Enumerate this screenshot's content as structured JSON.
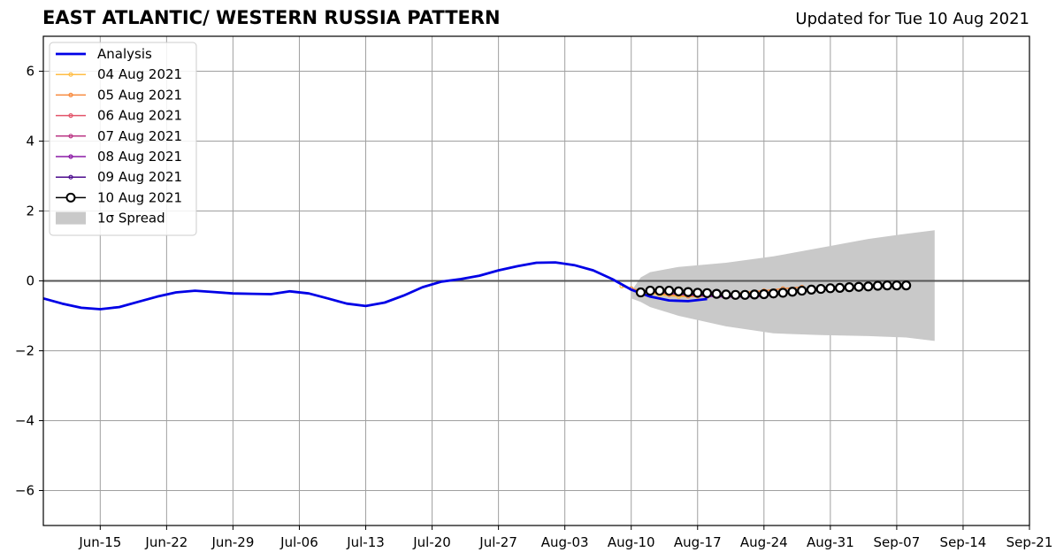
{
  "header": {
    "title": "EAST ATLANTIC/ WESTERN RUSSIA PATTERN",
    "updated": "Updated for Tue 10 Aug 2021"
  },
  "colors": {
    "analysis": "#0000e6",
    "spread": "#c9c9c9",
    "grid": "#a0a0a0",
    "zero_line": "#555555"
  },
  "chart_data": {
    "type": "line",
    "title": "EAST ATLANTIC/ WESTERN RUSSIA PATTERN",
    "xlabel": "",
    "ylabel": "",
    "x_type": "date",
    "xlim": [
      "2021-06-09",
      "2021-09-21"
    ],
    "ylim": [
      -7,
      7
    ],
    "grid": true,
    "legend_position": "top-left",
    "x_ticks": [
      {
        "date": "2021-06-15",
        "label": "Jun-15"
      },
      {
        "date": "2021-06-22",
        "label": "Jun-22"
      },
      {
        "date": "2021-06-29",
        "label": "Jun-29"
      },
      {
        "date": "2021-07-06",
        "label": "Jul-06"
      },
      {
        "date": "2021-07-13",
        "label": "Jul-13"
      },
      {
        "date": "2021-07-20",
        "label": "Jul-20"
      },
      {
        "date": "2021-07-27",
        "label": "Jul-27"
      },
      {
        "date": "2021-08-03",
        "label": "Aug-03"
      },
      {
        "date": "2021-08-10",
        "label": "Aug-10"
      },
      {
        "date": "2021-08-17",
        "label": "Aug-17"
      },
      {
        "date": "2021-08-24",
        "label": "Aug-24"
      },
      {
        "date": "2021-08-31",
        "label": "Aug-31"
      },
      {
        "date": "2021-09-07",
        "label": "Sep-07"
      },
      {
        "date": "2021-09-14",
        "label": "Sep-14"
      },
      {
        "date": "2021-09-21",
        "label": "Sep-21"
      }
    ],
    "y_ticks": [
      {
        "value": 6,
        "label": "6"
      },
      {
        "value": 4,
        "label": "4"
      },
      {
        "value": 2,
        "label": "2"
      },
      {
        "value": 0,
        "label": "0"
      },
      {
        "value": -2,
        "label": "−2"
      },
      {
        "value": -4,
        "label": "−4"
      },
      {
        "value": -6,
        "label": "−6"
      }
    ],
    "analysis": {
      "name": "Analysis",
      "color": "#0000e6",
      "points": [
        [
          "2021-06-09",
          -0.5
        ],
        [
          "2021-06-11",
          -0.65
        ],
        [
          "2021-06-13",
          -0.77
        ],
        [
          "2021-06-15",
          -0.81
        ],
        [
          "2021-06-17",
          -0.75
        ],
        [
          "2021-06-19",
          -0.6
        ],
        [
          "2021-06-21",
          -0.45
        ],
        [
          "2021-06-23",
          -0.33
        ],
        [
          "2021-06-25",
          -0.28
        ],
        [
          "2021-06-27",
          -0.32
        ],
        [
          "2021-06-29",
          -0.36
        ],
        [
          "2021-07-01",
          -0.37
        ],
        [
          "2021-07-03",
          -0.38
        ],
        [
          "2021-07-05",
          -0.3
        ],
        [
          "2021-07-07",
          -0.36
        ],
        [
          "2021-07-09",
          -0.5
        ],
        [
          "2021-07-11",
          -0.65
        ],
        [
          "2021-07-13",
          -0.72
        ],
        [
          "2021-07-15",
          -0.62
        ],
        [
          "2021-07-17",
          -0.42
        ],
        [
          "2021-07-19",
          -0.18
        ],
        [
          "2021-07-21",
          -0.02
        ],
        [
          "2021-07-23",
          0.05
        ],
        [
          "2021-07-25",
          0.15
        ],
        [
          "2021-07-27",
          0.3
        ],
        [
          "2021-07-29",
          0.42
        ],
        [
          "2021-07-31",
          0.52
        ],
        [
          "2021-08-02",
          0.53
        ],
        [
          "2021-08-04",
          0.45
        ],
        [
          "2021-08-06",
          0.3
        ],
        [
          "2021-08-08",
          0.05
        ],
        [
          "2021-08-10",
          -0.25
        ],
        [
          "2021-08-12",
          -0.45
        ],
        [
          "2021-08-14",
          -0.56
        ],
        [
          "2021-08-16",
          -0.58
        ],
        [
          "2021-08-18",
          -0.52
        ]
      ]
    },
    "spread": {
      "name": "1σ Spread",
      "color": "#c9c9c9",
      "upper": [
        [
          "2021-08-10",
          -0.3
        ],
        [
          "2021-08-11",
          0.1
        ],
        [
          "2021-08-12",
          0.25
        ],
        [
          "2021-08-15",
          0.4
        ],
        [
          "2021-08-20",
          0.52
        ],
        [
          "2021-08-25",
          0.7
        ],
        [
          "2021-08-30",
          0.95
        ],
        [
          "2021-09-04",
          1.2
        ],
        [
          "2021-09-08",
          1.35
        ],
        [
          "2021-09-11",
          1.45
        ]
      ],
      "lower": [
        [
          "2021-08-10",
          -0.5
        ],
        [
          "2021-08-11",
          -0.6
        ],
        [
          "2021-08-12",
          -0.75
        ],
        [
          "2021-08-15",
          -1.0
        ],
        [
          "2021-08-20",
          -1.3
        ],
        [
          "2021-08-25",
          -1.5
        ],
        [
          "2021-08-30",
          -1.55
        ],
        [
          "2021-09-04",
          -1.58
        ],
        [
          "2021-09-08",
          -1.62
        ],
        [
          "2021-09-11",
          -1.72
        ]
      ]
    },
    "forecasts": [
      {
        "name": "04 Aug 2021",
        "color": "#ffbd45",
        "points": [
          [
            "2021-08-09",
            -0.15
          ],
          [
            "2021-08-11",
            -0.32
          ],
          [
            "2021-08-13",
            -0.4
          ],
          [
            "2021-08-15",
            -0.45
          ],
          [
            "2021-08-17",
            -0.45
          ],
          [
            "2021-08-19",
            -0.42
          ],
          [
            "2021-08-21",
            -0.4
          ],
          [
            "2021-08-23",
            -0.35
          ]
        ]
      },
      {
        "name": "05 Aug 2021",
        "color": "#f88a3e",
        "points": [
          [
            "2021-08-10",
            -0.22
          ],
          [
            "2021-08-12",
            -0.33
          ],
          [
            "2021-08-14",
            -0.4
          ],
          [
            "2021-08-16",
            -0.44
          ],
          [
            "2021-08-18",
            -0.44
          ],
          [
            "2021-08-20",
            -0.4
          ],
          [
            "2021-08-22",
            -0.33
          ],
          [
            "2021-08-24",
            -0.28
          ],
          [
            "2021-08-26",
            -0.22
          ],
          [
            "2021-08-28",
            -0.18
          ]
        ]
      },
      {
        "name": "06 Aug 2021",
        "color": "#e3546a",
        "points": [
          [
            "2021-08-12",
            -0.3
          ],
          [
            "2021-08-14",
            -0.36
          ],
          [
            "2021-08-16",
            -0.4
          ],
          [
            "2021-08-18",
            -0.42
          ],
          [
            "2021-08-20",
            -0.42
          ],
          [
            "2021-08-22",
            -0.4
          ],
          [
            "2021-08-24",
            -0.38
          ],
          [
            "2021-08-26",
            -0.33
          ],
          [
            "2021-08-28",
            -0.28
          ]
        ]
      },
      {
        "name": "07 Aug 2021",
        "color": "#bb3786",
        "points": [
          [
            "2021-08-13",
            -0.33
          ],
          [
            "2021-08-15",
            -0.38
          ],
          [
            "2021-08-17",
            -0.42
          ],
          [
            "2021-08-19",
            -0.44
          ],
          [
            "2021-08-21",
            -0.45
          ],
          [
            "2021-08-23",
            -0.44
          ],
          [
            "2021-08-25",
            -0.4
          ]
        ]
      },
      {
        "name": "08 Aug 2021",
        "color": "#8c1aa6",
        "points": [
          [
            "2021-08-14",
            -0.36
          ],
          [
            "2021-08-16",
            -0.4
          ],
          [
            "2021-08-18",
            -0.44
          ],
          [
            "2021-08-20",
            -0.46
          ],
          [
            "2021-08-22",
            -0.46
          ],
          [
            "2021-08-24",
            -0.44
          ]
        ]
      },
      {
        "name": "09 Aug 2021",
        "color": "#4c0c8e",
        "points": [
          [
            "2021-08-15",
            -0.36
          ],
          [
            "2021-08-17",
            -0.4
          ],
          [
            "2021-08-19",
            -0.42
          ],
          [
            "2021-08-21",
            -0.44
          ],
          [
            "2021-08-23",
            -0.44
          ]
        ]
      },
      {
        "name": "10 Aug 2021",
        "color": "#000000",
        "style": "open-circle",
        "points": [
          [
            "2021-08-11",
            -0.33
          ],
          [
            "2021-08-12",
            -0.28
          ],
          [
            "2021-08-13",
            -0.28
          ],
          [
            "2021-08-14",
            -0.28
          ],
          [
            "2021-08-15",
            -0.3
          ],
          [
            "2021-08-16",
            -0.32
          ],
          [
            "2021-08-17",
            -0.34
          ],
          [
            "2021-08-18",
            -0.35
          ],
          [
            "2021-08-19",
            -0.37
          ],
          [
            "2021-08-20",
            -0.39
          ],
          [
            "2021-08-21",
            -0.4
          ],
          [
            "2021-08-22",
            -0.4
          ],
          [
            "2021-08-23",
            -0.39
          ],
          [
            "2021-08-24",
            -0.38
          ],
          [
            "2021-08-25",
            -0.36
          ],
          [
            "2021-08-26",
            -0.34
          ],
          [
            "2021-08-27",
            -0.31
          ],
          [
            "2021-08-28",
            -0.28
          ],
          [
            "2021-08-29",
            -0.25
          ],
          [
            "2021-08-30",
            -0.23
          ],
          [
            "2021-08-31",
            -0.21
          ],
          [
            "2021-09-01",
            -0.2
          ],
          [
            "2021-09-02",
            -0.18
          ],
          [
            "2021-09-03",
            -0.17
          ],
          [
            "2021-09-04",
            -0.16
          ],
          [
            "2021-09-05",
            -0.14
          ],
          [
            "2021-09-06",
            -0.13
          ],
          [
            "2021-09-07",
            -0.13
          ],
          [
            "2021-09-08",
            -0.13
          ]
        ]
      }
    ],
    "legend": [
      {
        "label": "Analysis",
        "kind": "line",
        "series": "analysis"
      },
      {
        "label": "04 Aug 2021",
        "kind": "dotline",
        "series": 0
      },
      {
        "label": "05 Aug 2021",
        "kind": "dotline",
        "series": 1
      },
      {
        "label": "06 Aug 2021",
        "kind": "dotline",
        "series": 2
      },
      {
        "label": "07 Aug 2021",
        "kind": "dotline",
        "series": 3
      },
      {
        "label": "08 Aug 2021",
        "kind": "dotline",
        "series": 4
      },
      {
        "label": "09 Aug 2021",
        "kind": "dotline",
        "series": 5
      },
      {
        "label": "10 Aug 2021",
        "kind": "circle",
        "series": 6
      },
      {
        "label": "1σ Spread",
        "kind": "patch",
        "series": "spread"
      }
    ]
  }
}
